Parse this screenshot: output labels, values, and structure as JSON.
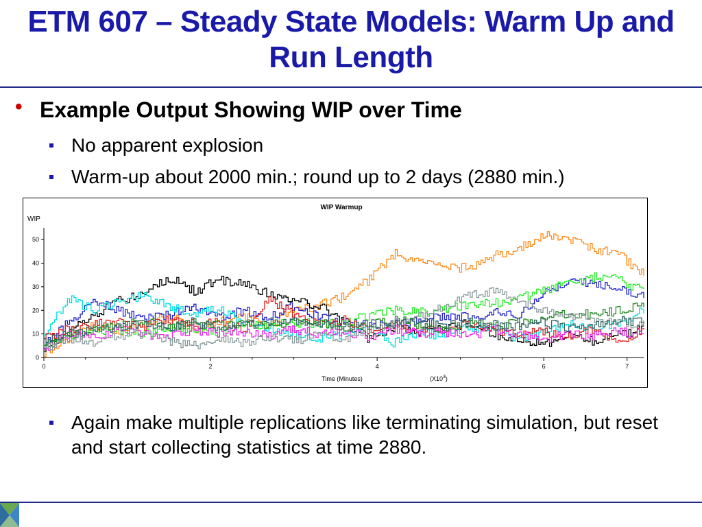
{
  "slide": {
    "title": "ETM 607 – Steady State Models: Warm Up and Run Length",
    "bullet1": "Example Output Showing WIP over Time",
    "sub1": "No apparent explosion",
    "sub2": "Warm-up about 2000 min.; round up to 2 days (2880 min.)",
    "sub3": "Again make multiple replications like terminating simulation, but reset and start collecting statistics at time 2880."
  },
  "colors": {
    "title": "#1a1aa8",
    "bullet": "#cc0000",
    "rule": "#1e2a8c"
  },
  "chart_data": {
    "type": "line",
    "title": "WIP Warmup",
    "xlabel": "Time (Minutes)",
    "xscale_note": "(X10",
    "xscale_exp": "3",
    "xscale_close": ")",
    "ylabel": "WIP",
    "xlim": [
      0,
      7.2
    ],
    "ylim": [
      0,
      55
    ],
    "xticks": [
      0,
      2,
      4,
      6,
      7
    ],
    "yticks": [
      0,
      10,
      20,
      30,
      40,
      50
    ],
    "grid": false,
    "legend": "none",
    "series": [
      {
        "color": "#ff8c1a",
        "x": [
          0,
          0.3,
          0.6,
          0.9,
          1.2,
          1.5,
          1.8,
          2.1,
          2.4,
          2.7,
          3.0,
          3.3,
          3.6,
          3.9,
          4.2,
          4.5,
          4.8,
          5.1,
          5.4,
          5.7,
          6.0,
          6.3,
          6.6,
          6.9,
          7.2
        ],
        "values": [
          2,
          8,
          14,
          10,
          14,
          18,
          12,
          15,
          17,
          14,
          20,
          22,
          26,
          33,
          44,
          41,
          38,
          38,
          43,
          46,
          52,
          50,
          46,
          44,
          35
        ]
      },
      {
        "color": "#000000",
        "x": [
          0,
          0.3,
          0.6,
          0.9,
          1.2,
          1.5,
          1.8,
          2.1,
          2.4,
          2.7,
          3.0,
          3.3,
          3.6,
          3.9,
          4.2,
          4.5,
          4.8,
          5.1,
          5.4,
          5.7,
          6.0,
          6.3,
          6.6,
          6.9,
          7.2
        ],
        "values": [
          4,
          12,
          18,
          24,
          27,
          34,
          28,
          33,
          31,
          27,
          24,
          22,
          15,
          8,
          13,
          11,
          13,
          14,
          10,
          7,
          6,
          9,
          7,
          10,
          12
        ]
      },
      {
        "color": "#2222cc",
        "x": [
          0,
          0.3,
          0.6,
          0.9,
          1.2,
          1.5,
          1.8,
          2.1,
          2.4,
          2.7,
          3.0,
          3.3,
          3.6,
          3.9,
          4.2,
          4.5,
          4.8,
          5.1,
          5.4,
          5.7,
          6.0,
          6.3,
          6.6,
          6.9,
          7.2
        ],
        "values": [
          5,
          15,
          24,
          20,
          16,
          18,
          22,
          17,
          20,
          17,
          22,
          17,
          15,
          14,
          14,
          16,
          18,
          17,
          19,
          18,
          27,
          33,
          31,
          30,
          26
        ]
      },
      {
        "color": "#22ee22",
        "x": [
          0,
          0.3,
          0.6,
          0.9,
          1.2,
          1.5,
          1.8,
          2.1,
          2.4,
          2.7,
          3.0,
          3.3,
          3.6,
          3.9,
          4.2,
          4.5,
          4.8,
          5.1,
          5.4,
          5.7,
          6.0,
          6.3,
          6.6,
          6.9,
          7.2
        ],
        "values": [
          6,
          9,
          12,
          11,
          10,
          13,
          12,
          10,
          13,
          14,
          15,
          14,
          15,
          18,
          20,
          19,
          21,
          22,
          23,
          25,
          29,
          31,
          34,
          33,
          28
        ]
      },
      {
        "color": "#00dddd",
        "x": [
          0,
          0.3,
          0.6,
          0.9,
          1.2,
          1.5,
          1.8,
          2.1,
          2.4,
          2.7,
          3.0,
          3.3,
          3.6,
          3.9,
          4.2,
          4.5,
          4.8,
          5.1,
          5.4,
          5.7,
          6.0,
          6.3,
          6.6,
          6.9,
          7.2
        ],
        "values": [
          10,
          25,
          20,
          24,
          26,
          22,
          18,
          21,
          14,
          12,
          10,
          8,
          10,
          12,
          6,
          11,
          9,
          13,
          12,
          8,
          10,
          14,
          12,
          15,
          20
        ]
      },
      {
        "color": "#dd2222",
        "x": [
          0,
          0.3,
          0.6,
          0.9,
          1.2,
          1.5,
          1.8,
          2.1,
          2.4,
          2.7,
          3.0,
          3.3,
          3.6,
          3.9,
          4.2,
          4.5,
          4.8,
          5.1,
          5.4,
          5.7,
          6.0,
          6.3,
          6.6,
          6.9,
          7.2
        ],
        "values": [
          8,
          12,
          14,
          15,
          13,
          16,
          14,
          15,
          12,
          25,
          18,
          14,
          16,
          12,
          14,
          11,
          13,
          14,
          12,
          10,
          11,
          9,
          12,
          7,
          12
        ]
      },
      {
        "color": "#228822",
        "x": [
          0,
          0.3,
          0.6,
          0.9,
          1.2,
          1.5,
          1.8,
          2.1,
          2.4,
          2.7,
          3.0,
          3.3,
          3.6,
          3.9,
          4.2,
          4.5,
          4.8,
          5.1,
          5.4,
          5.7,
          6.0,
          6.3,
          6.6,
          6.9,
          7.2
        ],
        "values": [
          5,
          9,
          12,
          14,
          16,
          13,
          15,
          14,
          15,
          13,
          16,
          15,
          13,
          14,
          16,
          14,
          12,
          15,
          13,
          15,
          17,
          19,
          18,
          20,
          23
        ]
      },
      {
        "color": "#ee22ee",
        "x": [
          0,
          0.3,
          0.6,
          0.9,
          1.2,
          1.5,
          1.8,
          2.1,
          2.4,
          2.7,
          3.0,
          3.3,
          3.6,
          3.9,
          4.2,
          4.5,
          4.8,
          5.1,
          5.4,
          5.7,
          6.0,
          6.3,
          6.6,
          6.9,
          7.2
        ],
        "values": [
          3,
          10,
          8,
          12,
          10,
          9,
          12,
          10,
          11,
          9,
          12,
          10,
          11,
          9,
          12,
          10,
          11,
          9,
          12,
          10,
          8,
          10,
          9,
          11,
          10
        ]
      },
      {
        "color": "#889999",
        "x": [
          0,
          0.3,
          0.6,
          0.9,
          1.2,
          1.5,
          1.8,
          2.1,
          2.4,
          2.7,
          3.0,
          3.3,
          3.6,
          3.9,
          4.2,
          4.5,
          4.8,
          5.1,
          5.4,
          5.7,
          6.0,
          6.3,
          6.6,
          6.9,
          7.2
        ],
        "values": [
          4,
          8,
          6,
          9,
          10,
          7,
          5,
          8,
          6,
          9,
          7,
          10,
          8,
          12,
          15,
          18,
          22,
          26,
          28,
          24,
          20,
          18,
          16,
          15,
          14
        ]
      },
      {
        "color": "#336666",
        "x": [
          0,
          0.3,
          0.6,
          0.9,
          1.2,
          1.5,
          1.8,
          2.1,
          2.4,
          2.7,
          3.0,
          3.3,
          3.6,
          3.9,
          4.2,
          4.5,
          4.8,
          5.1,
          5.4,
          5.7,
          6.0,
          6.3,
          6.6,
          6.9,
          7.2
        ],
        "values": [
          7,
          10,
          12,
          13,
          14,
          13,
          15,
          12,
          14,
          15,
          16,
          14,
          13,
          15,
          14,
          16,
          13,
          15,
          14,
          13,
          15,
          12,
          14,
          16,
          15
        ]
      }
    ]
  }
}
